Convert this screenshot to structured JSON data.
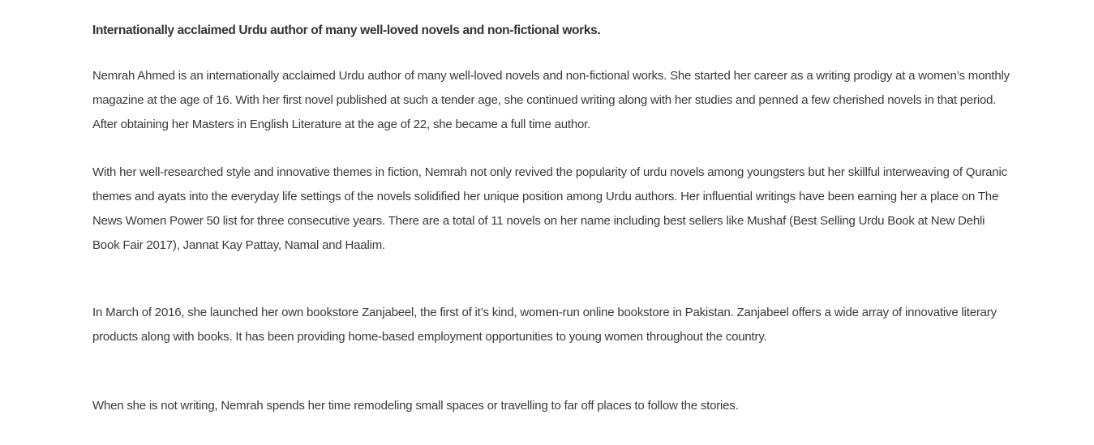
{
  "article": {
    "lead": "Internationally acclaimed Urdu author of many well-loved novels and non-fictional works.",
    "paragraphs": [
      "Nemrah Ahmed is an internationally acclaimed Urdu author of many well-loved novels and non-fictional works. She started her career as a writing prodigy at a women’s monthly magazine at the age of 16. With her first novel published at such a tender age, she continued writing along with her studies and penned a few cherished novels in that period. After obtaining her Masters in English Literature at the age of 22, she became a full time author.",
      "With her well-researched style and innovative themes in fiction, Nemrah not only revived the popularity of urdu novels among youngsters but her skillful interweaving of Quranic themes and ayats into the everyday life settings of the novels solidified her unique position among Urdu authors. Her influential writings have been earning her a place on The News Women Power 50 list for three consecutive years. There are a total of 11 novels on her name including best sellers like Mushaf (Best Selling Urdu Book at New Dehli Book Fair 2017), Jannat Kay Pattay, Namal and Haalim.",
      "In March of 2016, she launched her own bookstore Zanjabeel, the first of it’s kind, women-run online bookstore in Pakistan. Zanjabeel offers a wide array of innovative literary products along with books. It has been providing home-based employment opportunities to young women throughout the country.",
      "When she is not writing, Nemrah spends her time remodeling small spaces or travelling to far off places to follow the stories."
    ]
  }
}
